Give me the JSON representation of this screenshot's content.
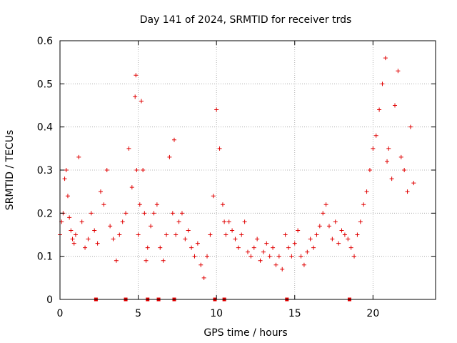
{
  "chart_data": {
    "type": "scatter",
    "title": "Day 141 of 2024, SRMTID for receiver trds",
    "xlabel": "GPS time / hours",
    "ylabel": "SRMTID / TECUs",
    "xlim": [
      0,
      24
    ],
    "ylim": [
      0,
      0.6
    ],
    "x_ticks": [
      0,
      5,
      10,
      15,
      20
    ],
    "y_ticks": [
      0,
      0.1,
      0.2,
      0.3,
      0.4,
      0.5,
      0.6
    ],
    "x_tick_labels": [
      "0",
      "5",
      "10",
      "15",
      "20"
    ],
    "y_tick_labels": [
      "0",
      "0.1",
      "0.2",
      "0.3",
      "0.4",
      "0.5",
      "0.6"
    ],
    "grid": true,
    "marker_color": "#e00000",
    "series": [
      {
        "name": "SRMTID",
        "marker": "plus",
        "x": [
          0.0,
          0.1,
          0.2,
          0.3,
          0.4,
          0.5,
          0.6,
          0.7,
          0.8,
          0.9,
          1.0,
          1.2,
          1.4,
          1.6,
          1.8,
          2.0,
          2.2,
          2.4,
          2.6,
          2.8,
          3.0,
          3.2,
          3.4,
          3.6,
          3.8,
          4.0,
          4.2,
          4.4,
          4.6,
          4.8,
          4.85,
          4.9,
          5.0,
          5.1,
          5.2,
          5.3,
          5.4,
          5.5,
          5.6,
          5.8,
          6.0,
          6.2,
          6.4,
          6.6,
          6.8,
          7.0,
          7.2,
          7.3,
          7.4,
          7.6,
          7.8,
          8.0,
          8.2,
          8.4,
          8.6,
          8.8,
          9.0,
          9.2,
          9.4,
          9.6,
          9.8,
          10.0,
          10.2,
          10.4,
          10.5,
          10.6,
          10.8,
          11.0,
          11.2,
          11.4,
          11.6,
          11.8,
          12.0,
          12.2,
          12.4,
          12.6,
          12.8,
          13.0,
          13.2,
          13.4,
          13.6,
          13.8,
          14.0,
          14.2,
          14.4,
          14.6,
          14.8,
          15.0,
          15.2,
          15.4,
          15.6,
          15.8,
          16.0,
          16.2,
          16.4,
          16.6,
          16.8,
          17.0,
          17.2,
          17.4,
          17.6,
          17.8,
          18.0,
          18.2,
          18.4,
          18.6,
          18.8,
          19.0,
          19.2,
          19.4,
          19.6,
          19.8,
          20.0,
          20.2,
          20.4,
          20.6,
          20.8,
          20.9,
          21.0,
          21.2,
          21.4,
          21.6,
          21.8,
          22.0,
          22.2,
          22.4,
          22.6
        ],
        "y": [
          0.15,
          0.18,
          0.2,
          0.28,
          0.3,
          0.24,
          0.19,
          0.16,
          0.14,
          0.13,
          0.15,
          0.33,
          0.18,
          0.12,
          0.14,
          0.2,
          0.16,
          0.13,
          0.25,
          0.22,
          0.3,
          0.17,
          0.14,
          0.09,
          0.15,
          0.18,
          0.2,
          0.35,
          0.26,
          0.47,
          0.52,
          0.3,
          0.15,
          0.22,
          0.46,
          0.3,
          0.2,
          0.09,
          0.12,
          0.17,
          0.2,
          0.22,
          0.12,
          0.09,
          0.15,
          0.33,
          0.2,
          0.37,
          0.15,
          0.18,
          0.2,
          0.14,
          0.16,
          0.12,
          0.1,
          0.13,
          0.08,
          0.05,
          0.1,
          0.15,
          0.24,
          0.44,
          0.35,
          0.22,
          0.18,
          0.15,
          0.18,
          0.16,
          0.14,
          0.12,
          0.15,
          0.18,
          0.11,
          0.1,
          0.12,
          0.14,
          0.09,
          0.11,
          0.13,
          0.1,
          0.12,
          0.08,
          0.1,
          0.07,
          0.15,
          0.12,
          0.1,
          0.13,
          0.16,
          0.1,
          0.08,
          0.11,
          0.14,
          0.12,
          0.15,
          0.17,
          0.2,
          0.22,
          0.17,
          0.14,
          0.18,
          0.13,
          0.16,
          0.15,
          0.14,
          0.12,
          0.1,
          0.15,
          0.18,
          0.22,
          0.25,
          0.3,
          0.35,
          0.38,
          0.44,
          0.5,
          0.56,
          0.32,
          0.35,
          0.28,
          0.45,
          0.53,
          0.33,
          0.3,
          0.25,
          0.4,
          0.27
        ]
      },
      {
        "name": "zero markers",
        "marker": "square",
        "x": [
          2.3,
          4.2,
          5.6,
          6.3,
          7.3,
          9.9,
          10.5,
          14.5,
          18.5
        ],
        "y": [
          0,
          0,
          0,
          0,
          0,
          0,
          0,
          0,
          0
        ]
      }
    ]
  }
}
